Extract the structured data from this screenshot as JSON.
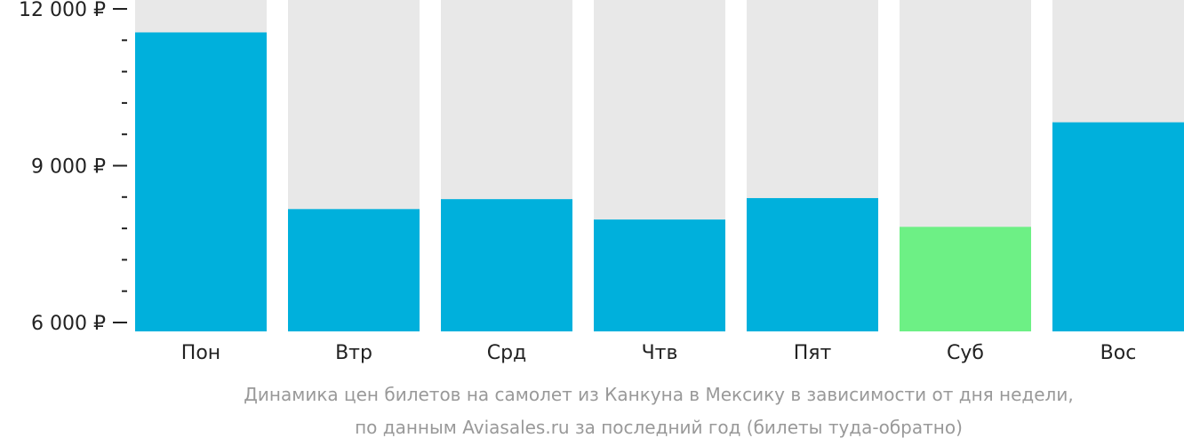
{
  "chart_data": {
    "type": "bar",
    "categories": [
      "Пон",
      "Втр",
      "Срд",
      "Чтв",
      "Пят",
      "Суб",
      "Вос"
    ],
    "values": [
      11550,
      8170,
      8360,
      7970,
      8380,
      7830,
      9830
    ],
    "ylim": [
      6000,
      12000
    ],
    "y_ticks": [
      {
        "value": 12000,
        "label": "12 000 ₽"
      },
      {
        "value": 9000,
        "label": "9 000 ₽"
      },
      {
        "value": 6000,
        "label": "6 000 ₽"
      }
    ],
    "y_minor_step": 600,
    "caption": [
      "Динамика цен билетов на самолет из Канкуна в Мексику в зависимости от дня недели,",
      "по данным Aviasales.ru за последний год (билеты туда-обратно)"
    ],
    "colors": {
      "bar": "#00b0dc",
      "bar_min": "#6df085",
      "bar_background": "#e8e8e8",
      "axis": "#222222",
      "caption": "#999999"
    }
  }
}
